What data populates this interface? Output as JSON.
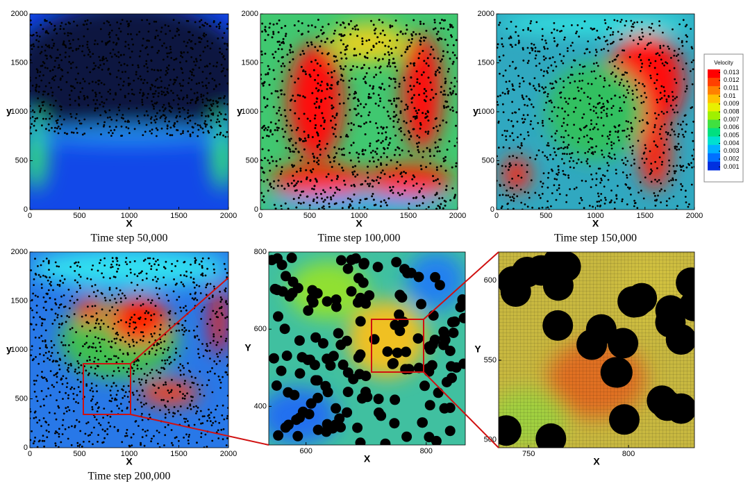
{
  "chart_data": [
    {
      "type": "heatmap",
      "xlabel": "X",
      "ylabel": "y",
      "caption": "Time step 50,000",
      "xlim": [
        0,
        2000
      ],
      "ylim": [
        0,
        2000
      ],
      "xticks": [
        0,
        500,
        1000,
        1500,
        2000
      ],
      "yticks": [
        0,
        500,
        1000,
        1500,
        2000
      ]
    },
    {
      "type": "heatmap",
      "xlabel": "X",
      "ylabel": "y",
      "caption": "Time step 100,000",
      "xlim": [
        0,
        2000
      ],
      "ylim": [
        0,
        2000
      ],
      "xticks": [
        0,
        500,
        1000,
        1500,
        2000
      ],
      "yticks": [
        0,
        500,
        1000,
        1500,
        2000
      ]
    },
    {
      "type": "heatmap",
      "xlabel": "X",
      "ylabel": "y",
      "caption": "Time step 150,000",
      "xlim": [
        0,
        2000
      ],
      "ylim": [
        0,
        2000
      ],
      "xticks": [
        0,
        500,
        1000,
        1500,
        2000
      ],
      "yticks": [
        0,
        500,
        1000,
        1500,
        2000
      ]
    },
    {
      "type": "heatmap",
      "xlabel": "X",
      "ylabel": "y",
      "caption": "Time step 200,000",
      "xlim": [
        0,
        2000
      ],
      "ylim": [
        0,
        2000
      ],
      "xticks": [
        0,
        500,
        1000,
        1500,
        2000
      ],
      "yticks": [
        0,
        500,
        1000,
        1500,
        2000
      ]
    },
    {
      "type": "heatmap",
      "xlabel": "X",
      "ylabel": "Y",
      "xlim": [
        538,
        865
      ],
      "ylim": [
        300,
        800
      ],
      "xticks": [
        600,
        800
      ],
      "yticks": [
        400,
        600,
        800
      ]
    },
    {
      "type": "heatmap",
      "xlabel": "X",
      "ylabel": "Y",
      "xlim": [
        735,
        833
      ],
      "ylim": [
        495,
        618
      ],
      "xticks": [
        750,
        800
      ],
      "yticks": [
        500,
        550,
        600
      ]
    }
  ],
  "colorbar": {
    "title": "Velocity",
    "lim": [
      0.0006,
      0.0134
    ],
    "ticks": [
      0.013,
      0.012,
      0.011,
      0.01,
      0.009,
      0.008,
      0.007,
      0.006,
      0.005,
      0.004,
      0.003,
      0.002,
      0.001
    ],
    "colors": [
      "#ff0000",
      "#ff4000",
      "#ff8000",
      "#ffc000",
      "#e8f000",
      "#a0f000",
      "#40e040",
      "#00e080",
      "#00e0d0",
      "#00b0ff",
      "#0070ff",
      "#0030e0"
    ]
  }
}
